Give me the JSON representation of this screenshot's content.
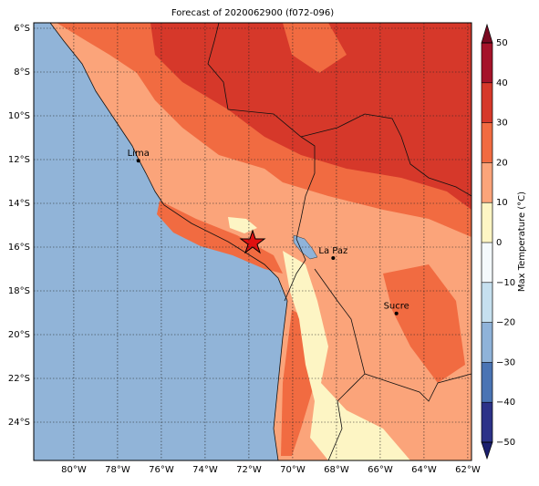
{
  "header": {
    "title": "Forecast of 2020062900 (f072-096)"
  },
  "map": {
    "lonlim": [
      -81.83,
      -61.83
    ],
    "latlim": [
      -5.75,
      -25.75
    ],
    "ocean_color": "#91b4d8",
    "lon_ticks": [
      {
        "value": -80,
        "label": "80°W"
      },
      {
        "value": -78,
        "label": "78°W"
      },
      {
        "value": -76,
        "label": "76°W"
      },
      {
        "value": -74,
        "label": "74°W"
      },
      {
        "value": -72,
        "label": "72°W"
      },
      {
        "value": -70,
        "label": "70°W"
      },
      {
        "value": -68,
        "label": "68°W"
      },
      {
        "value": -66,
        "label": "66°W"
      },
      {
        "value": -64,
        "label": "64°W"
      },
      {
        "value": -62,
        "label": "62°W"
      }
    ],
    "lat_ticks": [
      {
        "value": -6,
        "label": "6°S"
      },
      {
        "value": -8,
        "label": "8°S"
      },
      {
        "value": -10,
        "label": "10°S"
      },
      {
        "value": -12,
        "label": "12°S"
      },
      {
        "value": -14,
        "label": "14°S"
      },
      {
        "value": -16,
        "label": "16°S"
      },
      {
        "value": -18,
        "label": "18°S"
      },
      {
        "value": -20,
        "label": "20°S"
      },
      {
        "value": -22,
        "label": "22°S"
      },
      {
        "value": -24,
        "label": "24°S"
      }
    ],
    "cities": [
      {
        "name": "Lima",
        "lon": -77.05,
        "lat": -12.05
      },
      {
        "name": "La Paz",
        "lon": -68.15,
        "lat": -16.5
      },
      {
        "name": "Sucre",
        "lon": -65.26,
        "lat": -19.03
      }
    ]
  },
  "colorbar": {
    "label": "Max Temperature (°C)",
    "ticks": [
      {
        "value": -50,
        "label": "−50"
      },
      {
        "value": -40,
        "label": "−40"
      },
      {
        "value": -30,
        "label": "−30"
      },
      {
        "value": -20,
        "label": "−20"
      },
      {
        "value": -10,
        "label": "−10"
      },
      0,
      10,
      20,
      30,
      40,
      50
    ],
    "colors": [
      "#2c3288",
      "#4a74b4",
      "#8fb3d9",
      "#c6e0ef",
      "#f4f9fc",
      "#fdf5c4",
      "#fba47a",
      "#f16b41",
      "#d6382a",
      "#a5132a"
    ],
    "extend_colors": [
      "#1b1f6e",
      "#7a0a22"
    ]
  }
}
